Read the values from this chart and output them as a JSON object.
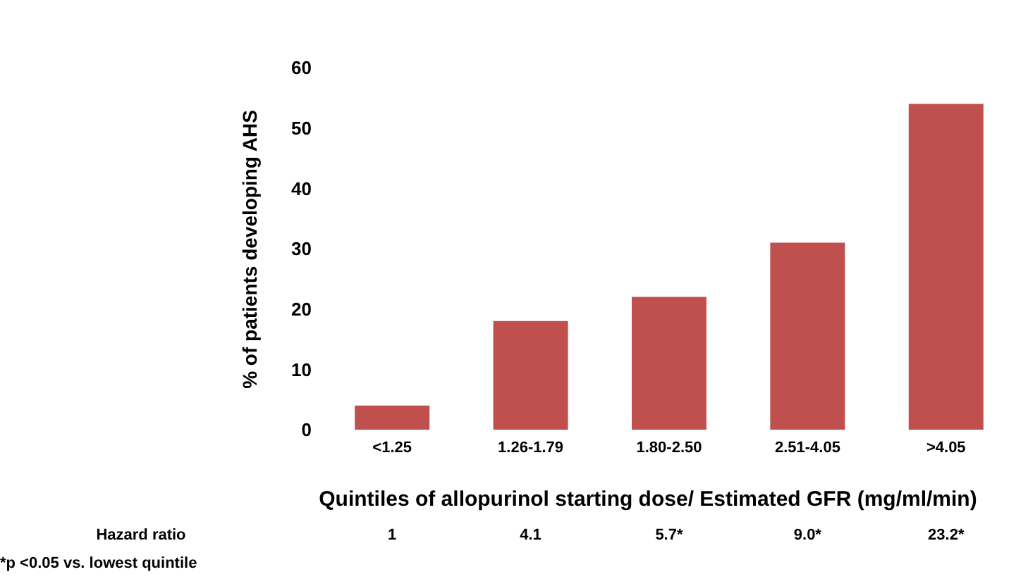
{
  "chart_data": {
    "type": "bar",
    "ylabel": "%  of patients developing AHS",
    "xlabel": "Quintiles of allopurinol starting dose/ Estimated GFR (mg/ml/min)",
    "categories": [
      "<1.25",
      "1.26-1.79",
      "1.80-2.50",
      "2.51-4.05",
      ">4.05"
    ],
    "values": [
      4,
      18,
      22,
      31,
      54
    ],
    "color": "#c0504d",
    "ylim": [
      0,
      60
    ],
    "yticks": [
      0,
      10,
      20,
      30,
      40,
      50,
      60
    ],
    "grid": false,
    "annotations": [
      "Hazard ratio",
      "1",
      "4.1",
      "5.7*",
      "9.0*",
      "23.2*",
      "*p <0.05 vs. lowest quintile"
    ]
  }
}
